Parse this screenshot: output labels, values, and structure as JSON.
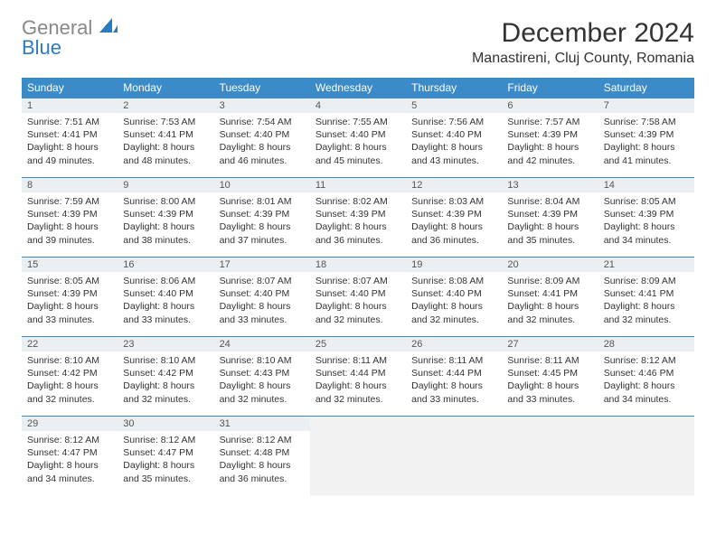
{
  "logo": {
    "part1": "General",
    "part2": "Blue"
  },
  "title": "December 2024",
  "location": "Manastireni, Cluj County, Romania",
  "colors": {
    "header_bg": "#3b8bc9",
    "header_fg": "#ffffff",
    "daynum_bg": "#eceff1",
    "border": "#3b8bc9",
    "logo_gray": "#888888",
    "logo_blue": "#2b7bbf"
  },
  "weekdays": [
    "Sunday",
    "Monday",
    "Tuesday",
    "Wednesday",
    "Thursday",
    "Friday",
    "Saturday"
  ],
  "labels": {
    "sunrise": "Sunrise:",
    "sunset": "Sunset:",
    "daylight": "Daylight:"
  },
  "days": [
    {
      "n": 1,
      "sr": "7:51 AM",
      "ss": "4:41 PM",
      "dl": "8 hours and 49 minutes."
    },
    {
      "n": 2,
      "sr": "7:53 AM",
      "ss": "4:41 PM",
      "dl": "8 hours and 48 minutes."
    },
    {
      "n": 3,
      "sr": "7:54 AM",
      "ss": "4:40 PM",
      "dl": "8 hours and 46 minutes."
    },
    {
      "n": 4,
      "sr": "7:55 AM",
      "ss": "4:40 PM",
      "dl": "8 hours and 45 minutes."
    },
    {
      "n": 5,
      "sr": "7:56 AM",
      "ss": "4:40 PM",
      "dl": "8 hours and 43 minutes."
    },
    {
      "n": 6,
      "sr": "7:57 AM",
      "ss": "4:39 PM",
      "dl": "8 hours and 42 minutes."
    },
    {
      "n": 7,
      "sr": "7:58 AM",
      "ss": "4:39 PM",
      "dl": "8 hours and 41 minutes."
    },
    {
      "n": 8,
      "sr": "7:59 AM",
      "ss": "4:39 PM",
      "dl": "8 hours and 39 minutes."
    },
    {
      "n": 9,
      "sr": "8:00 AM",
      "ss": "4:39 PM",
      "dl": "8 hours and 38 minutes."
    },
    {
      "n": 10,
      "sr": "8:01 AM",
      "ss": "4:39 PM",
      "dl": "8 hours and 37 minutes."
    },
    {
      "n": 11,
      "sr": "8:02 AM",
      "ss": "4:39 PM",
      "dl": "8 hours and 36 minutes."
    },
    {
      "n": 12,
      "sr": "8:03 AM",
      "ss": "4:39 PM",
      "dl": "8 hours and 36 minutes."
    },
    {
      "n": 13,
      "sr": "8:04 AM",
      "ss": "4:39 PM",
      "dl": "8 hours and 35 minutes."
    },
    {
      "n": 14,
      "sr": "8:05 AM",
      "ss": "4:39 PM",
      "dl": "8 hours and 34 minutes."
    },
    {
      "n": 15,
      "sr": "8:05 AM",
      "ss": "4:39 PM",
      "dl": "8 hours and 33 minutes."
    },
    {
      "n": 16,
      "sr": "8:06 AM",
      "ss": "4:40 PM",
      "dl": "8 hours and 33 minutes."
    },
    {
      "n": 17,
      "sr": "8:07 AM",
      "ss": "4:40 PM",
      "dl": "8 hours and 33 minutes."
    },
    {
      "n": 18,
      "sr": "8:07 AM",
      "ss": "4:40 PM",
      "dl": "8 hours and 32 minutes."
    },
    {
      "n": 19,
      "sr": "8:08 AM",
      "ss": "4:40 PM",
      "dl": "8 hours and 32 minutes."
    },
    {
      "n": 20,
      "sr": "8:09 AM",
      "ss": "4:41 PM",
      "dl": "8 hours and 32 minutes."
    },
    {
      "n": 21,
      "sr": "8:09 AM",
      "ss": "4:41 PM",
      "dl": "8 hours and 32 minutes."
    },
    {
      "n": 22,
      "sr": "8:10 AM",
      "ss": "4:42 PM",
      "dl": "8 hours and 32 minutes."
    },
    {
      "n": 23,
      "sr": "8:10 AM",
      "ss": "4:42 PM",
      "dl": "8 hours and 32 minutes."
    },
    {
      "n": 24,
      "sr": "8:10 AM",
      "ss": "4:43 PM",
      "dl": "8 hours and 32 minutes."
    },
    {
      "n": 25,
      "sr": "8:11 AM",
      "ss": "4:44 PM",
      "dl": "8 hours and 32 minutes."
    },
    {
      "n": 26,
      "sr": "8:11 AM",
      "ss": "4:44 PM",
      "dl": "8 hours and 33 minutes."
    },
    {
      "n": 27,
      "sr": "8:11 AM",
      "ss": "4:45 PM",
      "dl": "8 hours and 33 minutes."
    },
    {
      "n": 28,
      "sr": "8:12 AM",
      "ss": "4:46 PM",
      "dl": "8 hours and 34 minutes."
    },
    {
      "n": 29,
      "sr": "8:12 AM",
      "ss": "4:47 PM",
      "dl": "8 hours and 34 minutes."
    },
    {
      "n": 30,
      "sr": "8:12 AM",
      "ss": "4:47 PM",
      "dl": "8 hours and 35 minutes."
    },
    {
      "n": 31,
      "sr": "8:12 AM",
      "ss": "4:48 PM",
      "dl": "8 hours and 36 minutes."
    }
  ]
}
